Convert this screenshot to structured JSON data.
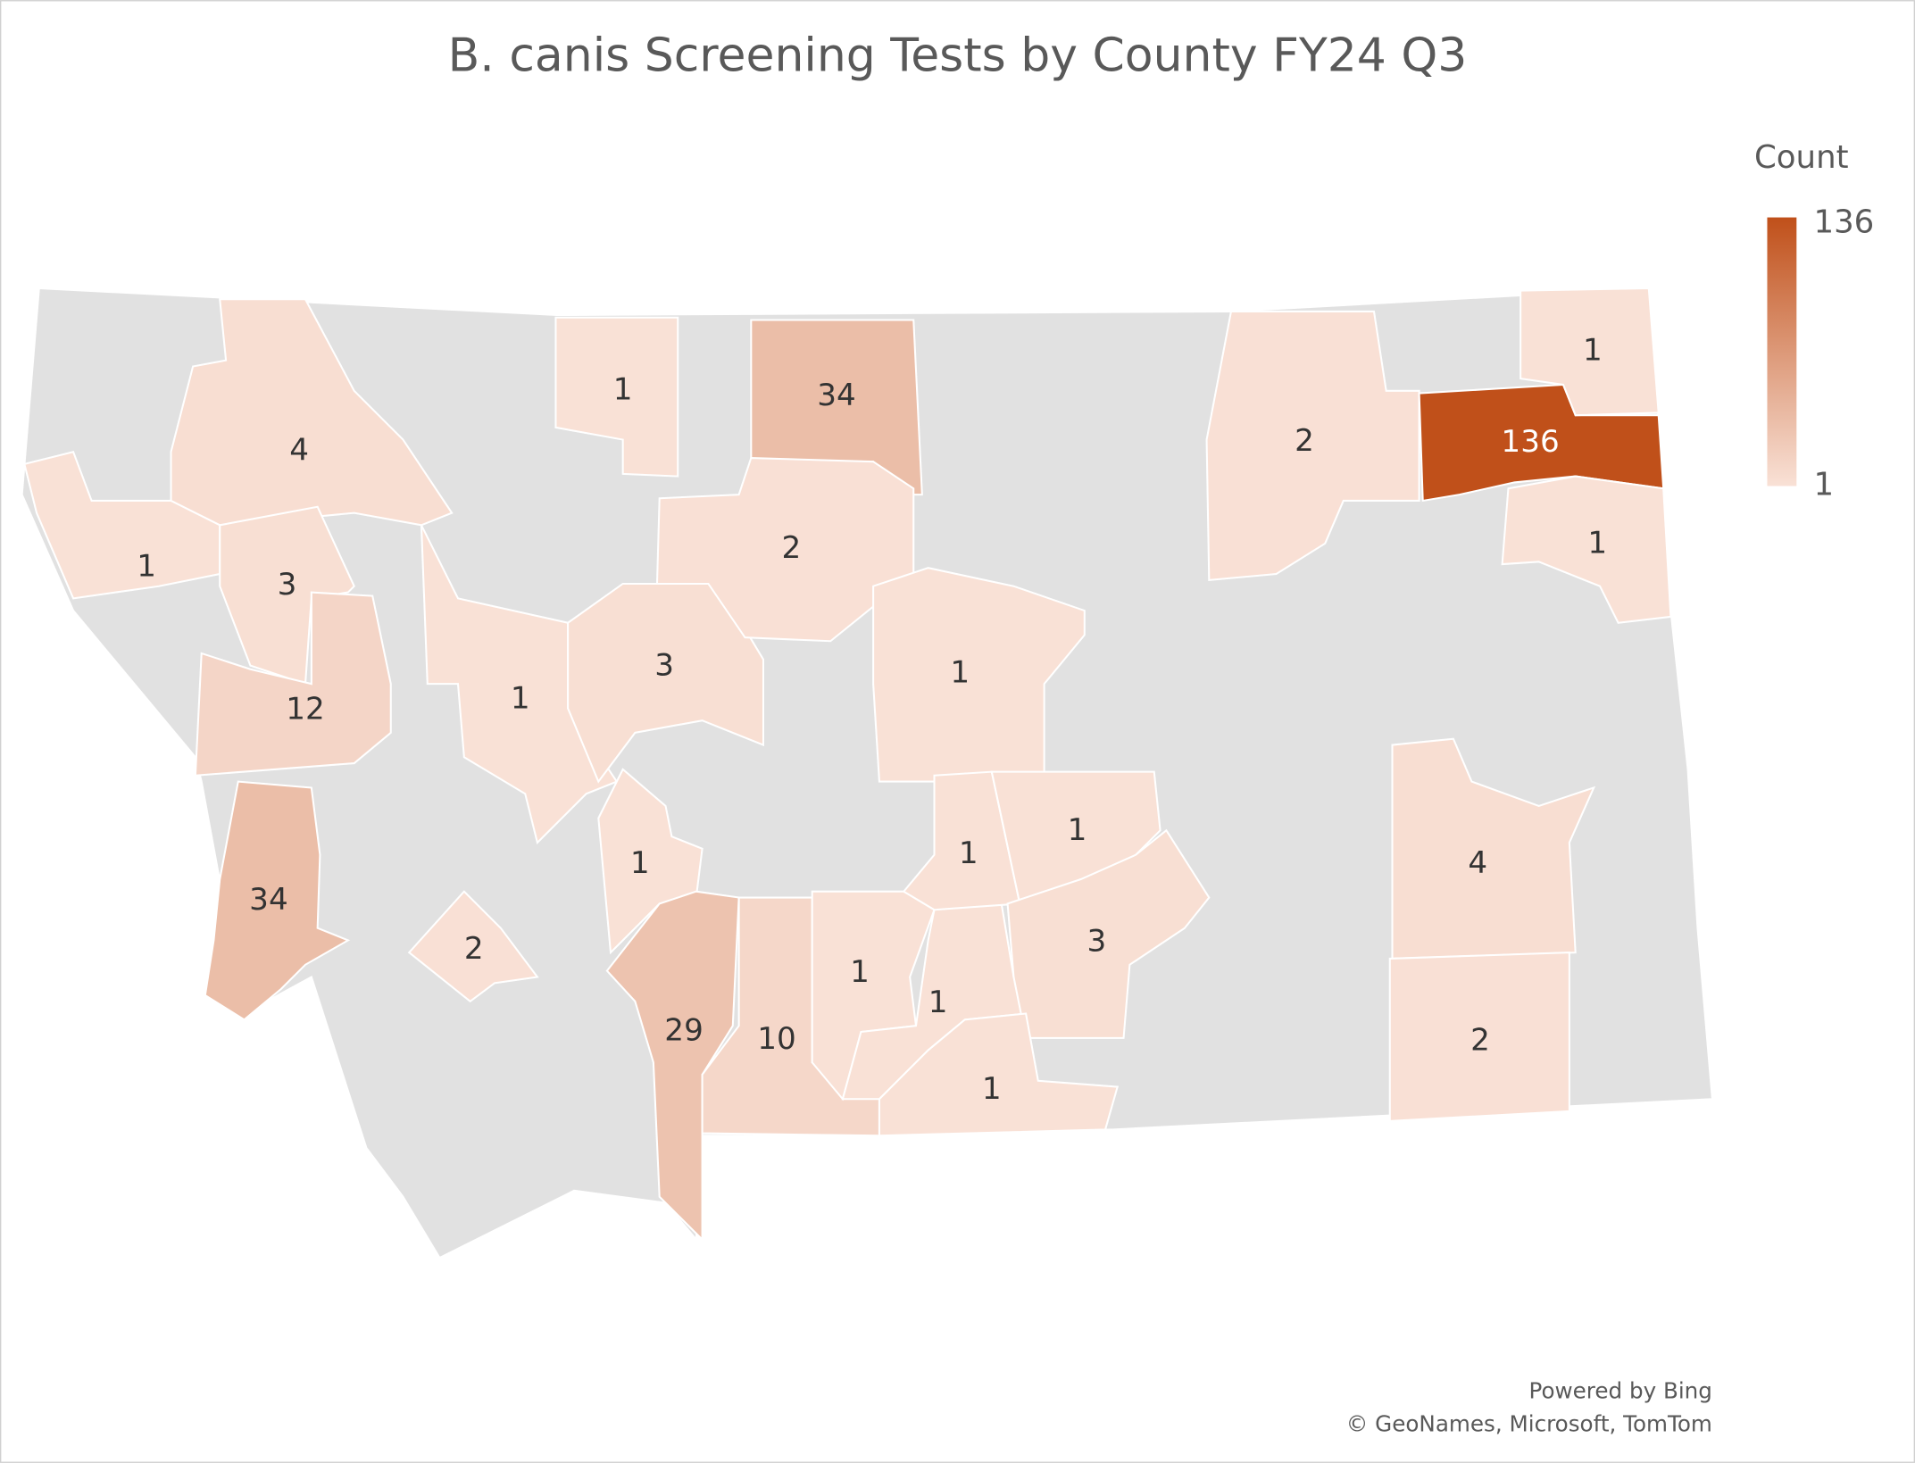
{
  "chart_data": {
    "type": "choropleth",
    "title": "B. canis Screening Tests by County FY24 Q3",
    "values": [
      1,
      34,
      4,
      1,
      3,
      12,
      1,
      3,
      2,
      2,
      136,
      1,
      1,
      1,
      34,
      2,
      1,
      29,
      10,
      1,
      1,
      1,
      1,
      3,
      1,
      4,
      2
    ],
    "no_data_color": "#e1e1e1",
    "colorbar": {
      "title": "Count",
      "min": 1,
      "max": 136,
      "colors": [
        "#f9e1d6",
        "#c0501a"
      ]
    },
    "attribution": [
      "Powered by Bing",
      "© GeoNames, Microsoft, TomTom"
    ]
  }
}
